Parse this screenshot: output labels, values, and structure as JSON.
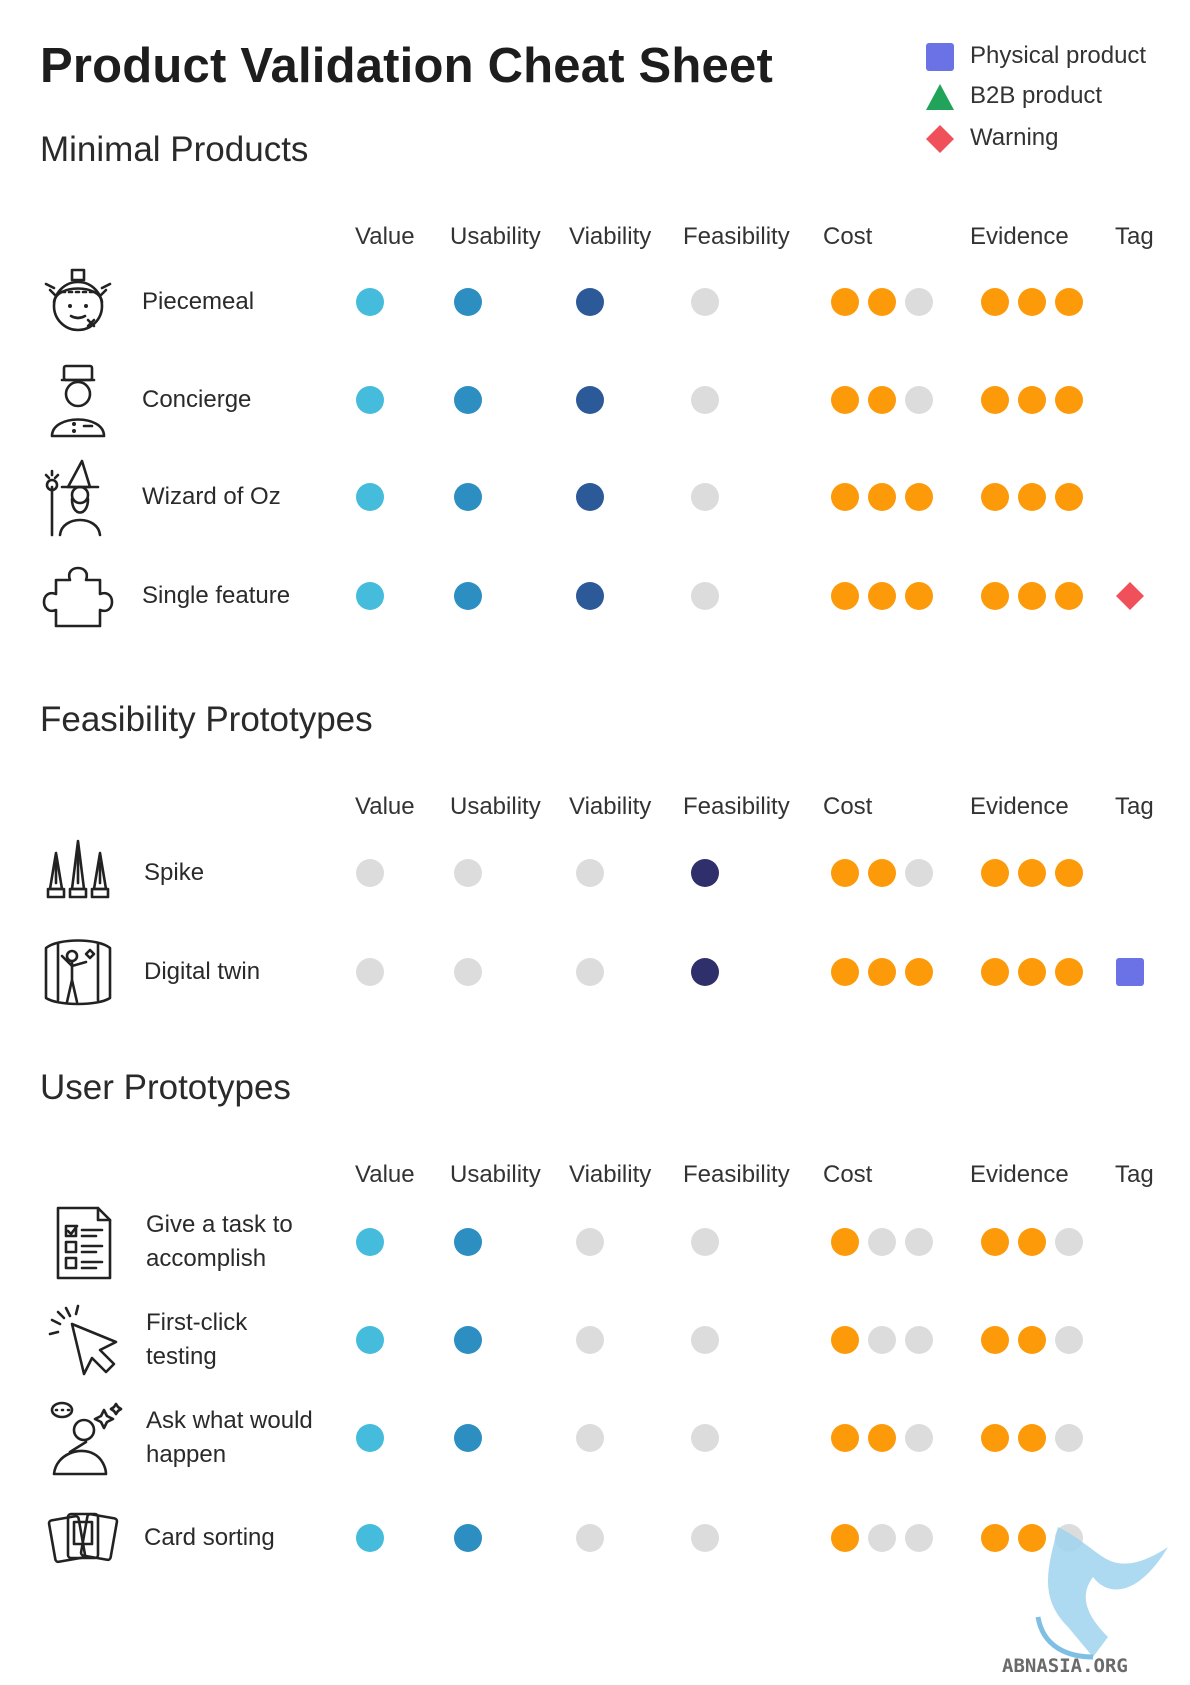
{
  "title": "Product Validation Cheat Sheet",
  "legend": [
    {
      "label": "Physical product",
      "shape": "square",
      "color": "#6b72e6"
    },
    {
      "label": "B2B product",
      "shape": "triangle",
      "color": "#21a35a"
    },
    {
      "label": "Warning",
      "shape": "diamond",
      "color": "#f0505a"
    }
  ],
  "colors": {
    "value": "#45bcdc",
    "usability": "#2d8ec2",
    "viability": "#2c5a99",
    "feasibility_dark": "#2e2f6b",
    "cost_evidence": "#fd9a09",
    "empty": "#dcdcdc"
  },
  "columns": [
    "Value",
    "Usability",
    "Viability",
    "Feasibility",
    "Cost",
    "Evidence",
    "Tag"
  ],
  "sections": [
    {
      "title": "Minimal Products",
      "rows": [
        {
          "label": "Piecemeal",
          "icon": "patched-face-icon",
          "value": 1,
          "usability": 1,
          "viability": 1,
          "feasibility": 0,
          "cost": 2,
          "evidence": 3,
          "tag": ""
        },
        {
          "label": "Concierge",
          "icon": "concierge-icon",
          "value": 1,
          "usability": 1,
          "viability": 1,
          "feasibility": 0,
          "cost": 2,
          "evidence": 3,
          "tag": ""
        },
        {
          "label": "Wizard of Oz",
          "icon": "wizard-icon",
          "value": 1,
          "usability": 1,
          "viability": 1,
          "feasibility": 0,
          "cost": 3,
          "evidence": 3,
          "tag": ""
        },
        {
          "label": "Single feature",
          "icon": "puzzle-piece-icon",
          "value": 1,
          "usability": 1,
          "viability": 1,
          "feasibility": 0,
          "cost": 3,
          "evidence": 3,
          "tag": "Warning"
        }
      ]
    },
    {
      "title": "Feasibility Prototypes",
      "rows": [
        {
          "label": "Spike",
          "icon": "spikes-icon",
          "value": 0,
          "usability": 0,
          "viability": 0,
          "feasibility": 1,
          "cost": 2,
          "evidence": 3,
          "tag": ""
        },
        {
          "label": "Digital twin",
          "icon": "digital-twin-icon",
          "value": 0,
          "usability": 0,
          "viability": 0,
          "feasibility": 1,
          "cost": 3,
          "evidence": 3,
          "tag": "Physical product"
        }
      ]
    },
    {
      "title": "User Prototypes",
      "rows": [
        {
          "label": "Give a task to accomplish",
          "label_lines": [
            "Give a task to",
            "accomplish"
          ],
          "icon": "checklist-icon",
          "value": 1,
          "usability": 1,
          "viability": 0,
          "feasibility": 0,
          "cost": 1,
          "evidence": 2,
          "tag": ""
        },
        {
          "label": "First-click testing",
          "label_lines": [
            "First-click",
            "testing"
          ],
          "icon": "cursor-click-icon",
          "value": 1,
          "usability": 1,
          "viability": 0,
          "feasibility": 0,
          "cost": 1,
          "evidence": 2,
          "tag": ""
        },
        {
          "label": "Ask what would happen",
          "label_lines": [
            "Ask what would",
            "happen"
          ],
          "icon": "thinking-person-icon",
          "value": 1,
          "usability": 1,
          "viability": 0,
          "feasibility": 0,
          "cost": 2,
          "evidence": 2,
          "tag": ""
        },
        {
          "label": "Card sorting",
          "icon": "cards-icon",
          "value": 1,
          "usability": 1,
          "viability": 0,
          "feasibility": 0,
          "cost": 1,
          "evidence": 2,
          "tag": ""
        }
      ]
    }
  ],
  "watermark": "ABNASIA.ORG"
}
